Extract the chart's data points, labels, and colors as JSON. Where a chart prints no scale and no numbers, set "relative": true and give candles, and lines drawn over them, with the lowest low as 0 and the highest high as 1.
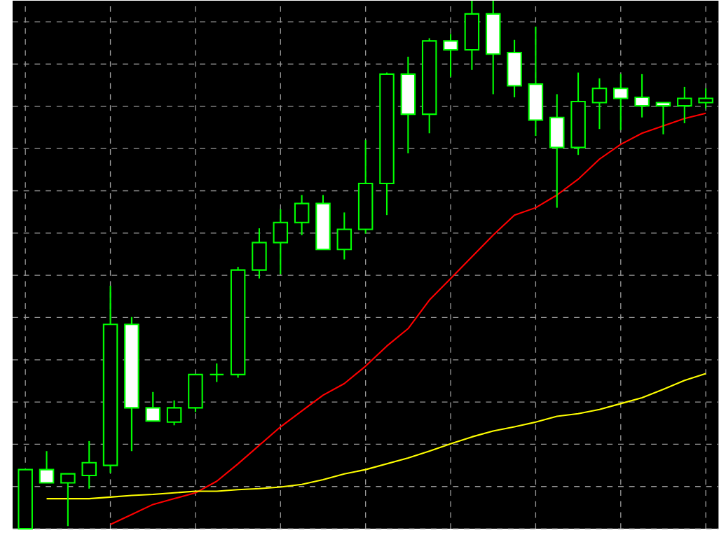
{
  "chart_data": {
    "type": "candlestick",
    "relative": true,
    "grid": true,
    "color": "#00ff00",
    "categories": [
      null,
      null,
      null,
      null,
      null,
      null,
      null,
      null,
      null,
      null,
      null,
      null,
      null,
      null,
      null,
      null,
      null,
      null,
      null,
      null,
      null,
      null,
      null,
      null,
      null,
      null,
      null,
      null,
      null,
      null,
      null,
      null,
      null
    ],
    "ohlc": [
      [
        0,
        0.112,
        0,
        0.112
      ],
      [
        0.112,
        0.147,
        0.087,
        0.087
      ],
      [
        0.087,
        0.104,
        0.005,
        0.104
      ],
      [
        0.101,
        0.166,
        0.076,
        0.125
      ],
      [
        0.12,
        0.46,
        0.106,
        0.387
      ],
      [
        0.387,
        0.401,
        0.147,
        0.229
      ],
      [
        0.229,
        0.259,
        0.204,
        0.204
      ],
      [
        0.202,
        0.243,
        0.196,
        0.229
      ],
      [
        0.229,
        0.292,
        0.221,
        0.292
      ],
      [
        0.292,
        0.313,
        0.278,
        0.292
      ],
      [
        0.292,
        0.496,
        0.286,
        0.49
      ],
      [
        0.49,
        0.569,
        0.474,
        0.542
      ],
      [
        0.542,
        0.605,
        0.482,
        0.58
      ],
      [
        0.58,
        0.632,
        0.556,
        0.616
      ],
      [
        0.616,
        0.632,
        0.529,
        0.529
      ],
      [
        0.529,
        0.599,
        0.51,
        0.567
      ],
      [
        0.567,
        0.736,
        0.559,
        0.654
      ],
      [
        0.654,
        0.864,
        0.594,
        0.861
      ],
      [
        0.861,
        0.894,
        0.711,
        0.785
      ],
      [
        0.785,
        0.929,
        0.749,
        0.924
      ],
      [
        0.924,
        0.937,
        0.856,
        0.907
      ],
      [
        0.907,
        1.0,
        0.869,
        0.975
      ],
      [
        0.975,
        1.0,
        0.823,
        0.899
      ],
      [
        0.902,
        0.926,
        0.817,
        0.839
      ],
      [
        0.842,
        0.951,
        0.744,
        0.774
      ],
      [
        0.779,
        0.823,
        0.608,
        0.722
      ],
      [
        0.722,
        0.864,
        0.708,
        0.809
      ],
      [
        0.807,
        0.853,
        0.757,
        0.834
      ],
      [
        0.834,
        0.861,
        0.755,
        0.815
      ],
      [
        0.817,
        0.861,
        0.779,
        0.801
      ],
      [
        0.807,
        0.807,
        0.747,
        0.801
      ],
      [
        0.801,
        0.837,
        0.768,
        0.815
      ],
      [
        0.807,
        0.834,
        0.796,
        0.815
      ]
    ],
    "series": [
      {
        "type": "line",
        "color": "#ff0000",
        "values": [
          null,
          null,
          null,
          null,
          0.008,
          0.027,
          0.046,
          0.057,
          0.068,
          0.09,
          0.123,
          0.158,
          0.193,
          0.223,
          0.253,
          0.275,
          0.308,
          0.346,
          0.379,
          0.433,
          0.474,
          0.515,
          0.556,
          0.594,
          0.608,
          0.632,
          0.662,
          0.7,
          0.728,
          0.749,
          0.763,
          0.777,
          0.787
        ]
      },
      {
        "type": "line",
        "color": "#ffff00",
        "values": [
          null,
          0.057,
          0.057,
          0.057,
          0.06,
          0.063,
          0.065,
          0.068,
          0.071,
          0.071,
          0.074,
          0.076,
          0.079,
          0.084,
          0.093,
          0.104,
          0.112,
          0.123,
          0.134,
          0.147,
          0.161,
          0.174,
          0.185,
          0.193,
          0.202,
          0.213,
          0.218,
          0.226,
          0.237,
          0.248,
          0.264,
          0.281,
          0.294
        ]
      }
    ]
  }
}
